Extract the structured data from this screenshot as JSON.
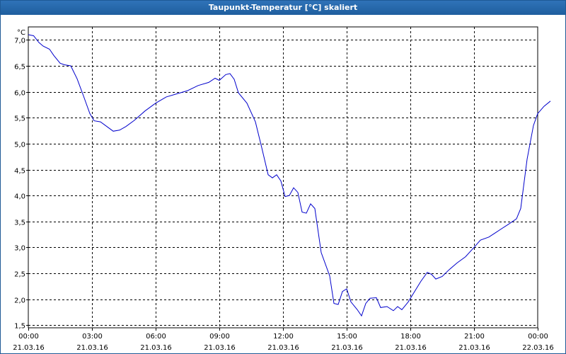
{
  "window": {
    "title": "Taupunkt-Temperatur [°C] skaliert"
  },
  "colors": {
    "line": "#0000cc",
    "grid": "#000000",
    "titlebar": "#1f5e9e",
    "background": "#ffffff"
  },
  "chart_data": {
    "type": "line",
    "title": "Taupunkt-Temperatur [°C] skaliert",
    "ylabel": "°C",
    "xlabel": "",
    "ylim": [
      1.45,
      7.25
    ],
    "xlim": [
      0,
      24
    ],
    "grid": true,
    "yticks": [
      {
        "value": 1.5,
        "label": "1,5"
      },
      {
        "value": 2.0,
        "label": "2,0"
      },
      {
        "value": 2.5,
        "label": "2,5"
      },
      {
        "value": 3.0,
        "label": "3,0"
      },
      {
        "value": 3.5,
        "label": "3,5"
      },
      {
        "value": 4.0,
        "label": "4,0"
      },
      {
        "value": 4.5,
        "label": "4,5"
      },
      {
        "value": 5.0,
        "label": "5,0"
      },
      {
        "value": 5.5,
        "label": "5,5"
      },
      {
        "value": 6.0,
        "label": "6,0"
      },
      {
        "value": 6.5,
        "label": "6,5"
      },
      {
        "value": 7.0,
        "label": "7,0"
      }
    ],
    "xticks": [
      {
        "value": 0,
        "time": "00:00",
        "date": "21.03.16"
      },
      {
        "value": 3,
        "time": "03:00",
        "date": "21.03.16"
      },
      {
        "value": 6,
        "time": "06:00",
        "date": "21.03.16"
      },
      {
        "value": 9,
        "time": "09:00",
        "date": "21.03.16"
      },
      {
        "value": 12,
        "time": "12:00",
        "date": "21.03.16"
      },
      {
        "value": 15,
        "time": "15:00",
        "date": "21.03.16"
      },
      {
        "value": 18,
        "time": "18:00",
        "date": "21.03.16"
      },
      {
        "value": 21,
        "time": "21:00",
        "date": "21.03.16"
      },
      {
        "value": 24,
        "time": "00:00",
        "date": "22.03.16"
      }
    ],
    "series": [
      {
        "points": [
          [
            0.0,
            7.1
          ],
          [
            0.25,
            7.08
          ],
          [
            0.5,
            6.95
          ],
          [
            0.7,
            6.88
          ],
          [
            1.0,
            6.82
          ],
          [
            1.2,
            6.7
          ],
          [
            1.5,
            6.55
          ],
          [
            1.7,
            6.52
          ],
          [
            2.0,
            6.5
          ],
          [
            2.3,
            6.25
          ],
          [
            2.6,
            5.92
          ],
          [
            2.9,
            5.58
          ],
          [
            3.1,
            5.44
          ],
          [
            3.4,
            5.42
          ],
          [
            3.7,
            5.33
          ],
          [
            4.0,
            5.24
          ],
          [
            4.3,
            5.26
          ],
          [
            4.6,
            5.33
          ],
          [
            5.0,
            5.45
          ],
          [
            5.5,
            5.63
          ],
          [
            6.0,
            5.78
          ],
          [
            6.5,
            5.9
          ],
          [
            7.0,
            5.96
          ],
          [
            7.5,
            6.02
          ],
          [
            8.0,
            6.12
          ],
          [
            8.5,
            6.18
          ],
          [
            8.8,
            6.26
          ],
          [
            9.0,
            6.22
          ],
          [
            9.3,
            6.33
          ],
          [
            9.5,
            6.35
          ],
          [
            9.7,
            6.24
          ],
          [
            9.9,
            5.98
          ],
          [
            10.3,
            5.78
          ],
          [
            10.7,
            5.42
          ],
          [
            11.0,
            4.92
          ],
          [
            11.3,
            4.4
          ],
          [
            11.5,
            4.34
          ],
          [
            11.7,
            4.4
          ],
          [
            11.9,
            4.28
          ],
          [
            12.1,
            3.98
          ],
          [
            12.3,
            4.0
          ],
          [
            12.5,
            4.15
          ],
          [
            12.7,
            4.06
          ],
          [
            12.9,
            3.68
          ],
          [
            13.1,
            3.66
          ],
          [
            13.3,
            3.84
          ],
          [
            13.5,
            3.75
          ],
          [
            13.8,
            2.9
          ],
          [
            14.2,
            2.45
          ],
          [
            14.4,
            1.92
          ],
          [
            14.6,
            1.9
          ],
          [
            14.8,
            2.15
          ],
          [
            15.0,
            2.2
          ],
          [
            15.2,
            1.95
          ],
          [
            15.5,
            1.8
          ],
          [
            15.7,
            1.68
          ],
          [
            15.9,
            1.92
          ],
          [
            16.1,
            2.02
          ],
          [
            16.4,
            2.03
          ],
          [
            16.6,
            1.84
          ],
          [
            16.9,
            1.86
          ],
          [
            17.2,
            1.78
          ],
          [
            17.4,
            1.86
          ],
          [
            17.6,
            1.8
          ],
          [
            17.9,
            1.95
          ],
          [
            18.2,
            2.15
          ],
          [
            18.5,
            2.35
          ],
          [
            18.8,
            2.52
          ],
          [
            19.0,
            2.48
          ],
          [
            19.2,
            2.39
          ],
          [
            19.5,
            2.44
          ],
          [
            19.8,
            2.56
          ],
          [
            20.2,
            2.7
          ],
          [
            20.6,
            2.82
          ],
          [
            21.0,
            3.0
          ],
          [
            21.3,
            3.14
          ],
          [
            21.7,
            3.2
          ],
          [
            22.0,
            3.28
          ],
          [
            22.3,
            3.36
          ],
          [
            22.6,
            3.44
          ],
          [
            23.0,
            3.55
          ],
          [
            23.2,
            3.75
          ],
          [
            23.5,
            4.7
          ],
          [
            23.8,
            5.35
          ],
          [
            24.0,
            5.58
          ],
          [
            24.3,
            5.72
          ],
          [
            24.6,
            5.82
          ]
        ]
      }
    ]
  }
}
